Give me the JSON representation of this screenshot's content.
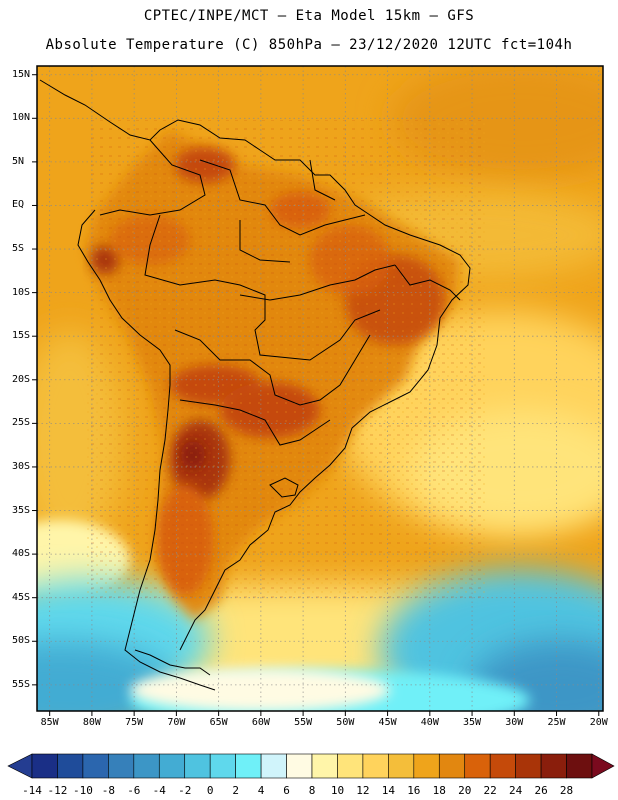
{
  "header": {
    "line1": "CPTEC/INPE/MCT –  Eta Model 15km – GFS",
    "line2": "Absolute Temperature (C) 850hPa – 23/12/2020 12UTC fct=104h"
  },
  "lat_labels": [
    "15N",
    "10N",
    "5N",
    "EQ",
    "5S",
    "10S",
    "15S",
    "20S",
    "25S",
    "30S",
    "35S",
    "40S",
    "45S",
    "50S",
    "55S"
  ],
  "lat_values": [
    15,
    10,
    5,
    0,
    -5,
    -10,
    -15,
    -20,
    -25,
    -30,
    -35,
    -40,
    -45,
    -50,
    -55
  ],
  "lon_labels": [
    "85W",
    "80W",
    "75W",
    "70W",
    "65W",
    "60W",
    "55W",
    "50W",
    "45W",
    "40W",
    "35W",
    "30W",
    "25W",
    "20W"
  ],
  "lon_values": [
    -85,
    -80,
    -75,
    -70,
    -65,
    -60,
    -55,
    -50,
    -45,
    -40,
    -35,
    -30,
    -25,
    -20
  ],
  "colorbar": {
    "labels": [
      "-14",
      "-12",
      "-10",
      "-8",
      "-6",
      "-4",
      "-2",
      "0",
      "2",
      "4",
      "6",
      "8",
      "10",
      "12",
      "14",
      "16",
      "18",
      "20",
      "22",
      "24",
      "26",
      "28"
    ],
    "colors": [
      "#1a2f86",
      "#1f4c9a",
      "#2b66ae",
      "#3680ba",
      "#3c96c6",
      "#43acd3",
      "#4fc3e0",
      "#5fd8ec",
      "#6ff0f8",
      "#d0f4fb",
      "#fffbe3",
      "#fff5a9",
      "#ffe47a",
      "#ffd35c",
      "#f4be3a",
      "#efa41b",
      "#e28710",
      "#d9620a",
      "#c54a0a",
      "#a93408",
      "#8a1e0c",
      "#6d0f0f"
    ],
    "under_color": "#243d91",
    "over_color": "#7a0a1e"
  }
}
